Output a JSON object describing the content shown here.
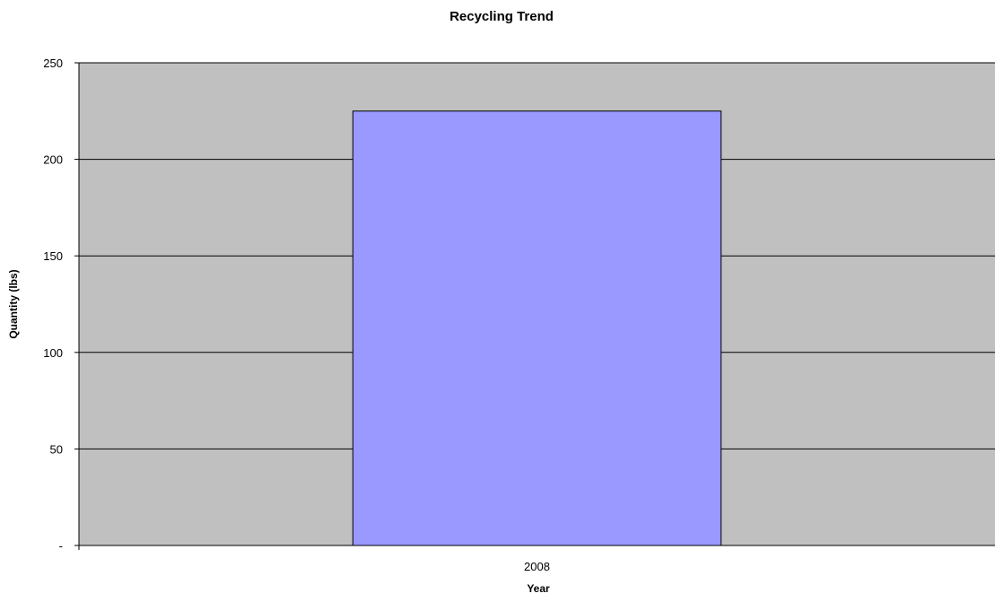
{
  "chart_data": {
    "type": "bar",
    "title": "Recycling Trend",
    "xlabel": "Year",
    "ylabel": "Quantity (lbs)",
    "categories": [
      "2008"
    ],
    "values": [
      225
    ],
    "ylim": [
      0,
      250
    ],
    "ytick_values": [
      0,
      50,
      100,
      150,
      200,
      250
    ],
    "ytick_labels": [
      "-",
      "50",
      "100",
      "150",
      "200",
      "250"
    ],
    "grid": true,
    "legend": "none",
    "colors": {
      "plot_background": "#c0c0c0",
      "bar_fill": "#9999ff",
      "bar_stroke": "#000000",
      "gridline": "#000000"
    }
  }
}
